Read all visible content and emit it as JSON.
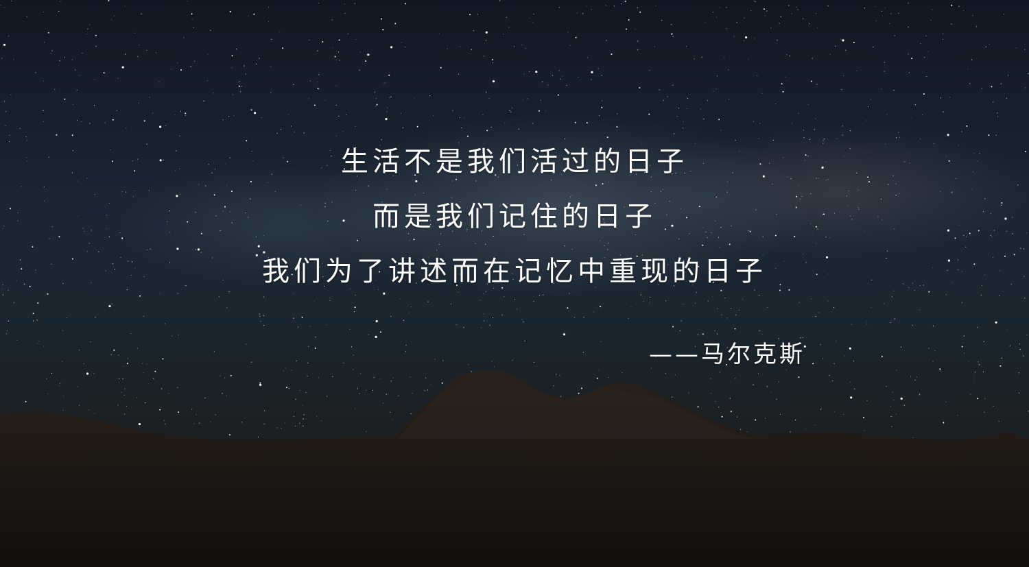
{
  "quote": {
    "lines": [
      "生活不是我们活过的日子",
      "而是我们记住的日子",
      "我们为了讲述而在记忆中重现的日子"
    ],
    "attribution": "——马尔克斯"
  },
  "colors": {
    "text": "#ffffff",
    "sky_top": "#111824",
    "sky_mid": "#1a2633",
    "ground": "#151514"
  }
}
